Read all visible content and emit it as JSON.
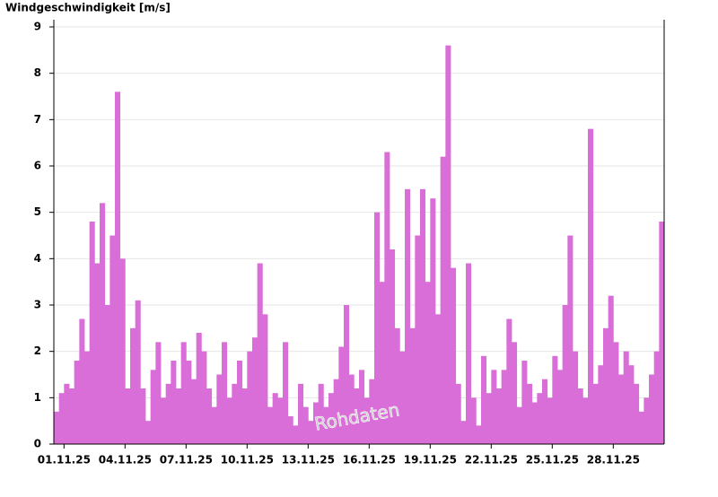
{
  "chart_data": {
    "type": "bar",
    "y_label": "Windgeschwindigkeit [m/s]",
    "watermark": "Rohdaten",
    "color": "#da6ed8",
    "grid": true,
    "x": [
      0,
      0.25,
      0.5,
      0.75,
      1,
      1.25,
      1.5,
      1.75,
      2,
      2.25,
      2.5,
      2.75,
      3,
      3.25,
      3.5,
      3.75,
      4,
      4.25,
      4.5,
      4.75,
      5,
      5.25,
      5.5,
      5.75,
      6,
      6.25,
      6.5,
      6.75,
      7,
      7.25,
      7.5,
      7.75,
      8,
      8.25,
      8.5,
      8.75,
      9,
      9.25,
      9.5,
      9.75,
      10,
      10.25,
      10.5,
      10.75,
      11,
      11.25,
      11.5,
      11.75,
      12,
      12.25,
      12.5,
      12.75,
      13,
      13.25,
      13.5,
      13.75,
      14,
      14.25,
      14.5,
      14.75,
      15,
      15.25,
      15.5,
      15.75,
      16,
      16.25,
      16.5,
      16.75,
      17,
      17.25,
      17.5,
      17.75,
      18,
      18.25,
      18.5,
      18.75,
      19,
      19.25,
      19.5,
      19.75,
      20,
      20.25,
      20.5,
      20.75,
      21,
      21.25,
      21.5,
      21.75,
      22,
      22.25,
      22.5,
      22.75,
      23,
      23.25,
      23.5,
      23.75,
      24,
      24.25,
      24.5,
      24.75,
      25,
      25.25,
      25.5,
      25.75,
      26,
      26.25,
      26.5,
      26.75,
      27,
      27.25,
      27.5,
      27.75,
      28,
      28.25,
      28.5,
      28.75,
      29,
      29.25,
      29.5,
      29.75
    ],
    "values": [
      0.7,
      1.1,
      1.3,
      1.2,
      1.8,
      2.7,
      2.0,
      4.8,
      3.9,
      5.2,
      3.0,
      4.5,
      7.6,
      4.0,
      1.2,
      2.5,
      3.1,
      1.2,
      0.5,
      1.6,
      2.2,
      1.0,
      1.3,
      1.8,
      1.2,
      2.2,
      1.8,
      1.4,
      2.4,
      2.0,
      1.2,
      0.8,
      1.5,
      2.2,
      1.0,
      1.3,
      1.8,
      1.2,
      2.0,
      2.3,
      3.9,
      2.8,
      0.8,
      1.1,
      1.0,
      2.2,
      0.6,
      0.4,
      1.3,
      0.8,
      0.5,
      0.9,
      1.3,
      0.8,
      1.1,
      1.4,
      2.1,
      3.0,
      1.5,
      1.2,
      1.6,
      1.0,
      1.4,
      5.0,
      3.5,
      6.3,
      4.2,
      2.5,
      2.0,
      5.5,
      2.5,
      4.5,
      5.5,
      3.5,
      5.3,
      2.8,
      6.2,
      8.6,
      3.8,
      1.3,
      0.5,
      3.9,
      1.0,
      0.4,
      1.9,
      1.1,
      1.6,
      1.2,
      1.6,
      2.7,
      2.2,
      0.8,
      1.8,
      1.3,
      0.9,
      1.1,
      1.4,
      1.0,
      1.9,
      1.6,
      3.0,
      4.5,
      2.0,
      1.2,
      1.0,
      6.8,
      1.3,
      1.7,
      2.5,
      3.2,
      2.2,
      1.5,
      2.0,
      1.7,
      1.3,
      0.7,
      1.0,
      1.5,
      2.0,
      4.8
    ],
    "xlim": [
      0,
      30
    ],
    "xticks": [
      {
        "value": 0.5,
        "label": "01.11.25"
      },
      {
        "value": 3.5,
        "label": "04.11.25"
      },
      {
        "value": 6.5,
        "label": "07.11.25"
      },
      {
        "value": 9.5,
        "label": "10.11.25"
      },
      {
        "value": 12.5,
        "label": "13.11.25"
      },
      {
        "value": 15.5,
        "label": "16.11.25"
      },
      {
        "value": 18.5,
        "label": "19.11.25"
      },
      {
        "value": 21.5,
        "label": "22.11.25"
      },
      {
        "value": 24.5,
        "label": "25.11.25"
      },
      {
        "value": 27.5,
        "label": "28.11.25"
      }
    ],
    "ylim": [
      0,
      9
    ],
    "yticks": [
      0,
      1,
      2,
      3,
      4,
      5,
      6,
      7,
      8,
      9
    ]
  }
}
